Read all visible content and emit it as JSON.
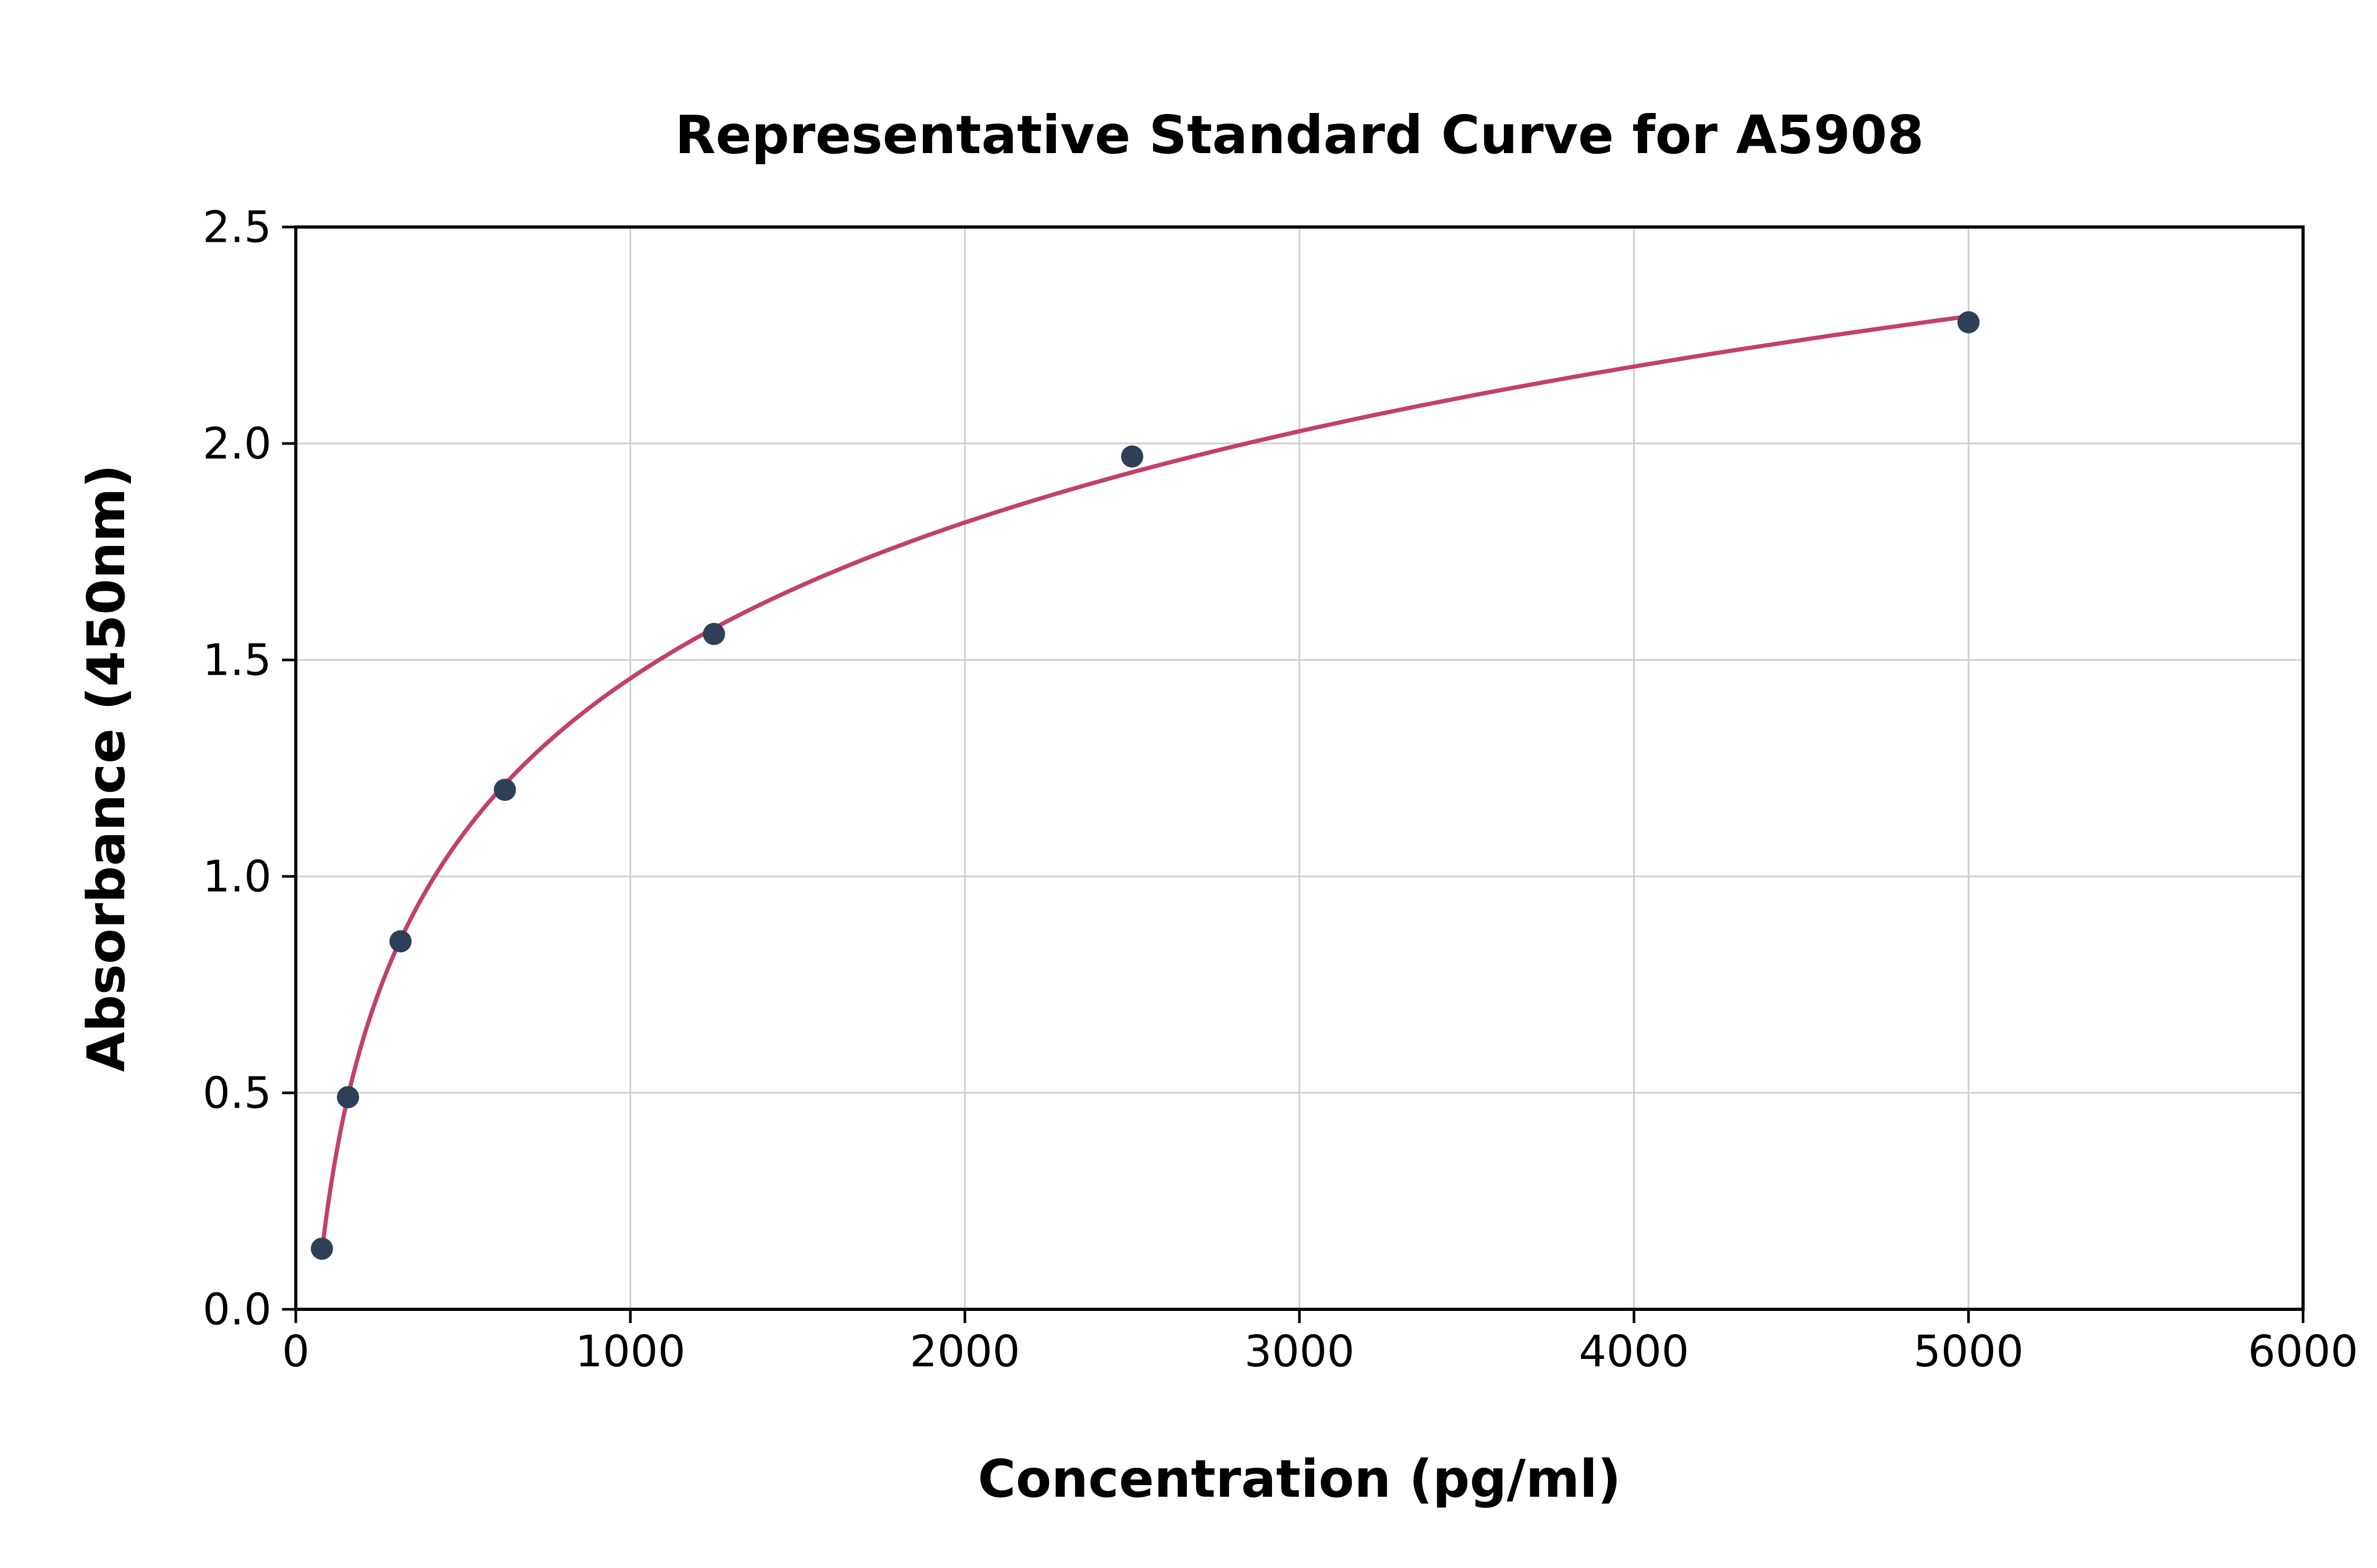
{
  "chart_data": {
    "type": "scatter",
    "title": "Representative Standard Curve for A5908",
    "xlabel": "Concentration (pg/ml)",
    "ylabel": "Absorbance (450nm)",
    "x": [
      78,
      156,
      313,
      625,
      1250,
      2500,
      5000
    ],
    "y": [
      0.14,
      0.49,
      0.85,
      1.2,
      1.56,
      1.97,
      2.28
    ],
    "xlim": [
      0,
      6000
    ],
    "ylim": [
      0,
      2.5
    ],
    "x_ticks": [
      0,
      1000,
      2000,
      3000,
      4000,
      5000,
      6000
    ],
    "x_tick_labels": [
      "0",
      "1000",
      "2000",
      "3000",
      "4000",
      "5000",
      "6000"
    ],
    "y_ticks": [
      0.0,
      0.5,
      1.0,
      1.5,
      2.0,
      2.5
    ],
    "y_tick_labels": [
      "0.0",
      "0.5",
      "1.0",
      "1.5",
      "2.0",
      "2.5"
    ],
    "grid": true,
    "legend": "none",
    "fit": "log",
    "point_color": "#2e4057",
    "curve_color": "#c2406e",
    "grid_color": "#cccccc",
    "background_color": "#ffffff"
  }
}
